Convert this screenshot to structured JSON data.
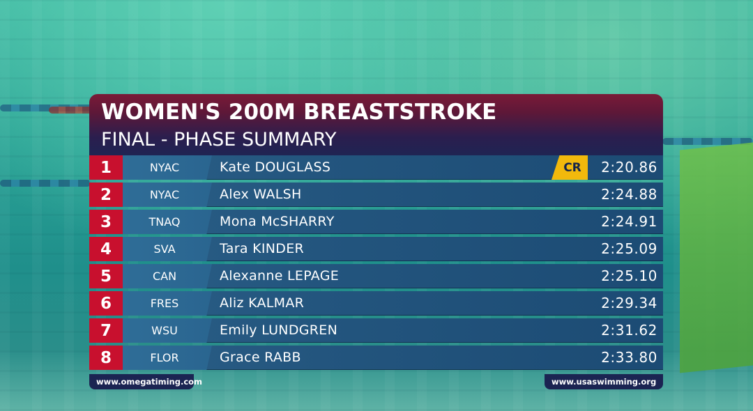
{
  "event": {
    "title": "WOMEN'S 200M BREASTSTROKE",
    "subtitle": "FINAL - PHASE SUMMARY"
  },
  "results": [
    {
      "rank": "1",
      "club": "NYAC",
      "name": "Kate DOUGLASS",
      "time": "2:20.86",
      "record": "CR"
    },
    {
      "rank": "2",
      "club": "NYAC",
      "name": "Alex WALSH",
      "time": "2:24.88"
    },
    {
      "rank": "3",
      "club": "TNAQ",
      "name": "Mona McSHARRY",
      "time": "2:24.91"
    },
    {
      "rank": "4",
      "club": "SVA",
      "name": "Tara KINDER",
      "time": "2:25.09"
    },
    {
      "rank": "5",
      "club": "CAN",
      "name": "Alexanne LEPAGE",
      "time": "2:25.10"
    },
    {
      "rank": "6",
      "club": "FRES",
      "name": "Aliz KALMAR",
      "time": "2:29.34"
    },
    {
      "rank": "7",
      "club": "WSU",
      "name": "Emily LUNDGREN",
      "time": "2:31.62"
    },
    {
      "rank": "8",
      "club": "FLOR",
      "name": "Grace RABB",
      "time": "2:33.80"
    }
  ],
  "footer": {
    "left": "www.omegatiming.com",
    "right": "www.usaswimming.org"
  },
  "colors": {
    "rank_red": "#c8102e",
    "record_yellow": "#f2b90c",
    "header_top": "#7a1a37",
    "header_bottom": "#1f2453"
  }
}
